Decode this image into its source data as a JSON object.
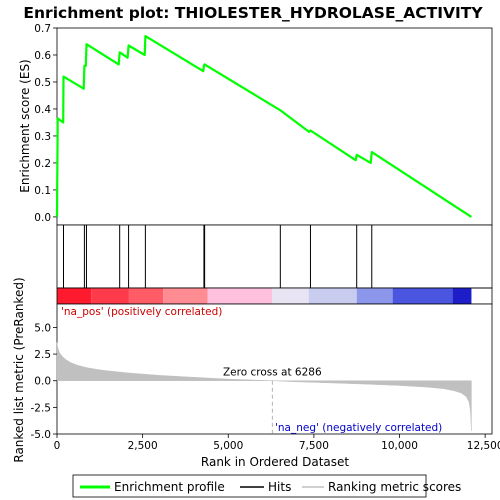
{
  "chart_data": {
    "type": "line",
    "title": "Enrichment plot: THIOLESTER_HYDROLASE_ACTIVITY",
    "top_panel": {
      "ylabel": "Enrichment score (ES)",
      "ylim": [
        -0.03,
        0.7
      ],
      "yticks": [
        0.0,
        0.1,
        0.2,
        0.3,
        0.4,
        0.5,
        0.6,
        0.7
      ],
      "ytick_labels": [
        "0.0",
        "0.1",
        "0.2",
        "0.3",
        "0.4",
        "0.5",
        "0.6",
        "0.7"
      ],
      "series": [
        {
          "name": "Enrichment profile",
          "color": "#00ff00",
          "x": [
            0,
            20,
            180,
            190,
            780,
            800,
            840,
            860,
            1800,
            1830,
            2060,
            2090,
            2560,
            2580,
            4270,
            4290,
            4310,
            6520,
            7360,
            7400,
            8720,
            8750,
            9160,
            9190,
            12100
          ],
          "y": [
            0.0,
            0.365,
            0.35,
            0.52,
            0.475,
            0.56,
            0.56,
            0.64,
            0.565,
            0.61,
            0.59,
            0.635,
            0.6,
            0.67,
            0.54,
            0.56,
            0.565,
            0.395,
            0.315,
            0.32,
            0.21,
            0.23,
            0.2,
            0.24,
            0.0
          ]
        }
      ]
    },
    "hits": {
      "name": "Hits",
      "color": "#000000",
      "positions": [
        190,
        800,
        860,
        1830,
        2090,
        2580,
        4290,
        4310,
        6520,
        7400,
        8750,
        9190
      ]
    },
    "heat_bar": {
      "segments": [
        {
          "start": 0,
          "end": 1000,
          "color": "#ff1a2e"
        },
        {
          "start": 1000,
          "end": 2100,
          "color": "#ff3a4a"
        },
        {
          "start": 2100,
          "end": 3100,
          "color": "#ff5c68"
        },
        {
          "start": 3100,
          "end": 4400,
          "color": "#ff8c92"
        },
        {
          "start": 4400,
          "end": 6286,
          "color": "#ffc0dd"
        },
        {
          "start": 6286,
          "end": 7350,
          "color": "#e8e4f4"
        },
        {
          "start": 7350,
          "end": 8750,
          "color": "#c8cdf0"
        },
        {
          "start": 8750,
          "end": 9800,
          "color": "#8c96ea"
        },
        {
          "start": 9800,
          "end": 11550,
          "color": "#4a55e0"
        },
        {
          "start": 11550,
          "end": 12100,
          "color": "#1e1ec8"
        }
      ]
    },
    "bottom_panel": {
      "ylabel": "Ranked list metric (PreRanked)",
      "ylim": [
        -5,
        7.2
      ],
      "yticks": [
        -5.0,
        -2.5,
        0.0,
        2.5,
        5.0
      ],
      "ytick_labels": [
        "-5.0",
        "-2.5",
        "0.0",
        "2.5",
        "5.0"
      ],
      "series": [
        {
          "name": "Ranking metric scores",
          "color": "#c0c0c0",
          "x": [
            0,
            10,
            40,
            80,
            150,
            250,
            400,
            600,
            900,
            1300,
            2000,
            3000,
            4000,
            5000,
            6286,
            7000,
            8000,
            9000,
            10000,
            10800,
            11300,
            11600,
            11800,
            11950,
            12030,
            12070,
            12100
          ],
          "y": [
            3.6,
            3.3,
            2.9,
            2.6,
            2.3,
            2.0,
            1.7,
            1.45,
            1.2,
            1.0,
            0.75,
            0.5,
            0.32,
            0.15,
            0.0,
            -0.1,
            -0.2,
            -0.32,
            -0.45,
            -0.6,
            -0.75,
            -0.95,
            -1.15,
            -1.5,
            -2.0,
            -2.8,
            -4.7
          ]
        }
      ],
      "zero_cross_label": "Zero cross at 6286",
      "zero_cross": 6286,
      "pos_label": "'na_pos' (positively correlated)",
      "pos_color": "#cc0000",
      "neg_label": "'na_neg' (negatively correlated)",
      "neg_color": "#0000cc"
    },
    "xlabel": "Rank in Ordered Dataset",
    "xlim": [
      0,
      12700
    ],
    "xticks": [
      0,
      2500,
      5000,
      7500,
      10000,
      12500
    ],
    "xtick_labels": [
      "0",
      "2,500",
      "5,000",
      "7,500",
      "10,000",
      "12,500"
    ],
    "legend": {
      "placement": "bottom",
      "entries": [
        {
          "label": "Enrichment profile",
          "color": "#00ff00"
        },
        {
          "label": "Hits",
          "color": "#000000"
        },
        {
          "label": "Ranking metric scores",
          "color": "#c0c0c0"
        }
      ]
    },
    "grid": false
  }
}
